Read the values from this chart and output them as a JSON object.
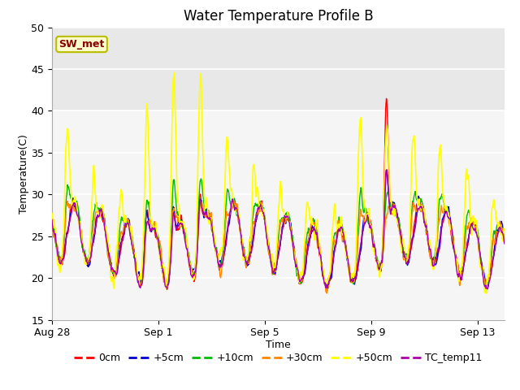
{
  "title": "Water Temperature Profile B",
  "xlabel": "Time",
  "ylabel": "Temperature(C)",
  "ylim": [
    15,
    50
  ],
  "n_days": 17,
  "shaded_ymin": 40,
  "shaded_ymax": 50,
  "shaded_color": "#e8e8e8",
  "plot_bg_color": "#f5f5f5",
  "background_color": "#ffffff",
  "grid_color": "#ffffff",
  "sw_met_label": "SW_met",
  "sw_met_bg": "#ffffcc",
  "sw_met_border": "#bbbb00",
  "sw_met_text_color": "#880000",
  "legend_entries": [
    "0cm",
    "+5cm",
    "+10cm",
    "+30cm",
    "+50cm",
    "TC_temp11"
  ],
  "line_colors": [
    "#ff0000",
    "#0000cc",
    "#00bb00",
    "#ff8800",
    "#ffff00",
    "#aa00aa"
  ],
  "line_widths": [
    1.0,
    1.0,
    1.0,
    1.0,
    1.2,
    1.0
  ],
  "xtick_labels": [
    "Aug 28",
    "Sep 1",
    "Sep 5",
    "Sep 9",
    "Sep 13"
  ],
  "xtick_positions": [
    0,
    4,
    8,
    12,
    16
  ],
  "ytick_positions": [
    15,
    20,
    25,
    30,
    35,
    40,
    45,
    50
  ],
  "font_size_title": 12,
  "font_size_axis": 9,
  "font_size_tick": 9,
  "font_size_legend": 9
}
